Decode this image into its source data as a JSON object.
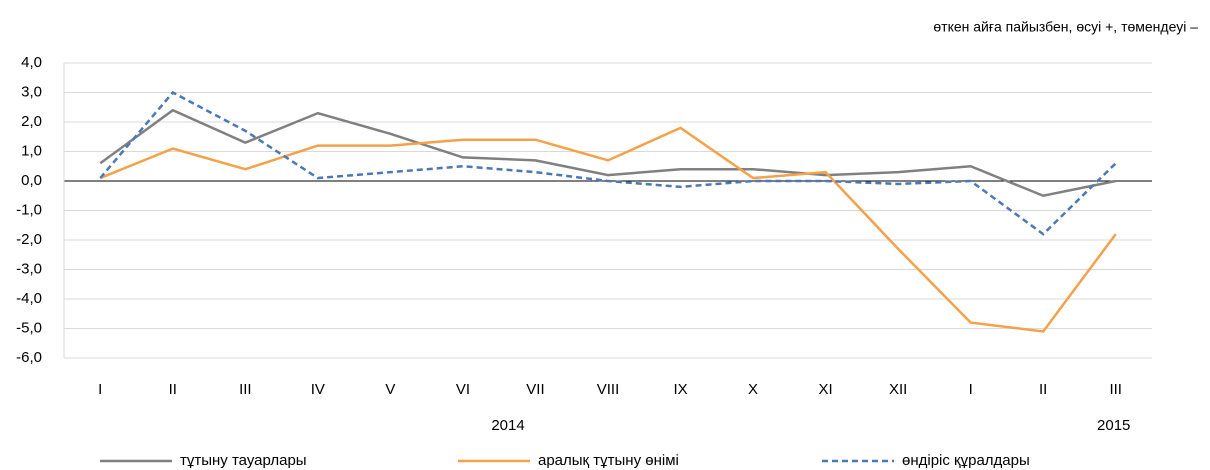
{
  "chart_data": {
    "type": "line",
    "note": "өткен айға пайызбен, өсуі +, төмендеуі –",
    "categories": [
      "I",
      "II",
      "III",
      "IV",
      "V",
      "VI",
      "VII",
      "VIII",
      "IX",
      "X",
      "XI",
      "XII",
      "I",
      "II",
      "III"
    ],
    "x_groups": [
      "2014",
      "2015"
    ],
    "series": [
      {
        "name": "тұтыну тауарлары",
        "color": "#808080",
        "line_style": "solid",
        "values": [
          0.6,
          2.4,
          1.3,
          2.3,
          1.6,
          0.8,
          0.7,
          0.2,
          0.4,
          0.4,
          0.2,
          0.3,
          0.5,
          -0.5,
          0.0
        ]
      },
      {
        "name": "аралық тұтыну өнімі",
        "color": "#f4a14a",
        "line_style": "solid",
        "values": [
          0.1,
          1.1,
          0.4,
          1.2,
          1.2,
          1.4,
          1.4,
          0.7,
          1.8,
          0.1,
          0.3,
          -2.3,
          -4.8,
          -5.1,
          -1.8
        ]
      },
      {
        "name": "өндіріс құралдары",
        "color": "#4a78b8",
        "line_style": "dashed",
        "values": [
          0.1,
          3.0,
          1.7,
          0.1,
          0.3,
          0.5,
          0.3,
          0.0,
          -0.2,
          0.0,
          0.0,
          -0.1,
          0.0,
          -1.8,
          0.6
        ]
      }
    ],
    "ylim": [
      -6,
      4
    ],
    "yticks": [
      {
        "value": 4,
        "label": "4,0"
      },
      {
        "value": 3,
        "label": "3,0"
      },
      {
        "value": 2,
        "label": "2,0"
      },
      {
        "value": 1,
        "label": "1,0"
      },
      {
        "value": 0,
        "label": "0,0"
      },
      {
        "value": -1,
        "label": "-1,0"
      },
      {
        "value": -2,
        "label": "-2,0"
      },
      {
        "value": -3,
        "label": "-3,0"
      },
      {
        "value": -4,
        "label": "-4,0"
      },
      {
        "value": -5,
        "label": "-5,0"
      },
      {
        "value": -6,
        "label": "-6,0"
      }
    ],
    "grid": true
  }
}
